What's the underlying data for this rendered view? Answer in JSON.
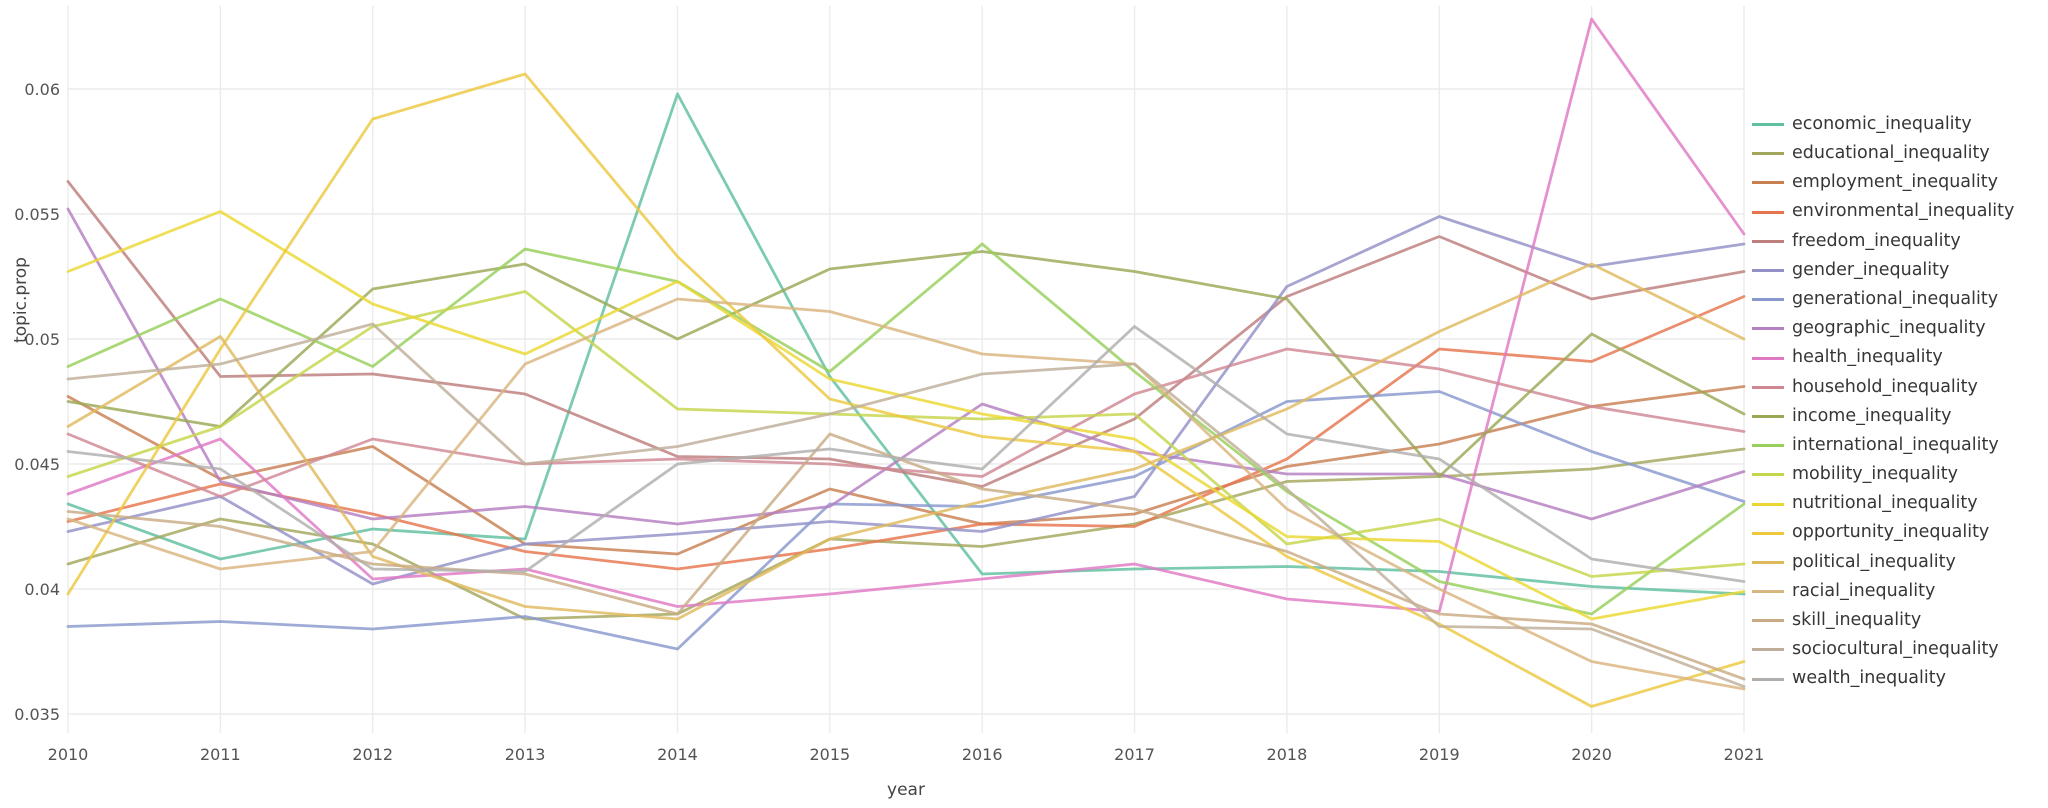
{
  "chart_data": {
    "type": "line",
    "title": "",
    "xlabel": "year",
    "ylabel": "topic.prop",
    "x": [
      2010,
      2011,
      2012,
      2013,
      2014,
      2015,
      2016,
      2017,
      2018,
      2019,
      2020,
      2021
    ],
    "x_tick_labels": [
      "2010",
      "2011",
      "2012",
      "2013",
      "2014",
      "2015",
      "2016",
      "2017",
      "2018",
      "2019",
      "2020",
      "2021"
    ],
    "yticks": [
      0.035,
      0.04,
      0.045,
      0.05,
      0.055,
      0.06
    ],
    "ytick_labels": [
      "0.035",
      "0.04",
      "0.045",
      "0.05",
      "0.055",
      "0.06"
    ],
    "ylim": [
      0.0335,
      0.0645
    ],
    "grid": true,
    "legend_position": "right",
    "series": [
      {
        "name": "economic_inequality",
        "color": "#5fbf9f",
        "values": [
          0.0434,
          0.0412,
          0.0424,
          0.042,
          0.0598,
          0.0485,
          0.0406,
          0.0408,
          0.0409,
          0.0407,
          0.0401,
          0.0398
        ]
      },
      {
        "name": "educational_inequality",
        "color": "#a3a75c",
        "values": [
          0.041,
          0.0428,
          0.0418,
          0.0388,
          0.039,
          0.042,
          0.0417,
          0.0426,
          0.0443,
          0.0445,
          0.0448,
          0.0456
        ]
      },
      {
        "name": "employment_inequality",
        "color": "#c87f51",
        "values": [
          0.0477,
          0.0444,
          0.0457,
          0.0418,
          0.0414,
          0.044,
          0.0426,
          0.043,
          0.0449,
          0.0458,
          0.0473,
          0.0481
        ]
      },
      {
        "name": "environmental_inequality",
        "color": "#e5754d",
        "values": [
          0.0427,
          0.0442,
          0.043,
          0.0415,
          0.0408,
          0.0416,
          0.0426,
          0.0425,
          0.0452,
          0.0496,
          0.0491,
          0.0517
        ]
      },
      {
        "name": "freedom_inequality",
        "color": "#bd7e7d",
        "values": [
          0.0563,
          0.0485,
          0.0486,
          0.0478,
          0.0453,
          0.0452,
          0.0441,
          0.0468,
          0.0517,
          0.0541,
          0.0516,
          0.0527
        ]
      },
      {
        "name": "gender_inequality",
        "color": "#9290c7",
        "values": [
          0.0423,
          0.0437,
          0.0402,
          0.0418,
          0.0422,
          0.0427,
          0.0423,
          0.0437,
          0.0521,
          0.0549,
          0.0529,
          0.0538
        ]
      },
      {
        "name": "generational_inequality",
        "color": "#8798cd",
        "values": [
          0.0385,
          0.0387,
          0.0384,
          0.0389,
          0.0376,
          0.0434,
          0.0433,
          0.0445,
          0.0475,
          0.0479,
          0.0455,
          0.0435
        ]
      },
      {
        "name": "geographic_inequality",
        "color": "#b57fc1",
        "values": [
          0.0552,
          0.0443,
          0.0428,
          0.0433,
          0.0426,
          0.0433,
          0.0474,
          0.0455,
          0.0446,
          0.0446,
          0.0428,
          0.0447
        ]
      },
      {
        "name": "health_inequality",
        "color": "#e079c4",
        "values": [
          0.0438,
          0.046,
          0.0404,
          0.0408,
          0.0393,
          0.0398,
          0.0404,
          0.041,
          0.0396,
          0.0391,
          0.0628,
          0.0542
        ]
      },
      {
        "name": "household_inequality",
        "color": "#d08794",
        "values": [
          0.0462,
          0.0437,
          0.046,
          0.045,
          0.0452,
          0.045,
          0.0445,
          0.0478,
          0.0496,
          0.0488,
          0.0473,
          0.0463
        ]
      },
      {
        "name": "income_inequality",
        "color": "#9aa854",
        "values": [
          0.0475,
          0.0465,
          0.052,
          0.053,
          0.05,
          0.0528,
          0.0535,
          0.0527,
          0.0516,
          0.0445,
          0.0502,
          0.047
        ]
      },
      {
        "name": "international_inequality",
        "color": "#97cf5a",
        "values": [
          0.0489,
          0.0516,
          0.0489,
          0.0536,
          0.0523,
          0.0487,
          0.0538,
          0.0487,
          0.0439,
          0.0403,
          0.039,
          0.0434
        ]
      },
      {
        "name": "mobility_inequality",
        "color": "#c6d64b",
        "values": [
          0.0445,
          0.0465,
          0.0505,
          0.0519,
          0.0472,
          0.047,
          0.0468,
          0.047,
          0.0418,
          0.0428,
          0.0405,
          0.041
        ]
      },
      {
        "name": "nutritional_inequality",
        "color": "#ead831",
        "values": [
          0.0527,
          0.0551,
          0.0514,
          0.0494,
          0.0523,
          0.0484,
          0.047,
          0.046,
          0.0421,
          0.0419,
          0.0388,
          0.0399
        ]
      },
      {
        "name": "opportunity_inequality",
        "color": "#edc83f",
        "values": [
          0.0398,
          0.0496,
          0.0588,
          0.0606,
          0.0533,
          0.0476,
          0.0461,
          0.0455,
          0.0413,
          0.0386,
          0.0353,
          0.0371
        ]
      },
      {
        "name": "political_inequality",
        "color": "#dfba5d",
        "values": [
          0.0465,
          0.0501,
          0.0413,
          0.0393,
          0.0388,
          0.042,
          0.0435,
          0.0448,
          0.0472,
          0.0503,
          0.053,
          0.05
        ]
      },
      {
        "name": "racial_inequality",
        "color": "#d9b57f",
        "values": [
          0.0428,
          0.0408,
          0.0415,
          0.049,
          0.0516,
          0.0511,
          0.0494,
          0.049,
          0.0432,
          0.04,
          0.0371,
          0.036
        ]
      },
      {
        "name": "skill_inequality",
        "color": "#c8ab84",
        "values": [
          0.0431,
          0.0425,
          0.041,
          0.0406,
          0.039,
          0.0462,
          0.044,
          0.0432,
          0.0415,
          0.039,
          0.0386,
          0.0364
        ]
      },
      {
        "name": "sociocultural_inequality",
        "color": "#bfae99",
        "values": [
          0.0484,
          0.049,
          0.0506,
          0.045,
          0.0457,
          0.047,
          0.0486,
          0.049,
          0.044,
          0.0385,
          0.0384,
          0.0361
        ]
      },
      {
        "name": "wealth_inequality",
        "color": "#b0aeac",
        "values": [
          0.0455,
          0.0448,
          0.0408,
          0.0407,
          0.045,
          0.0456,
          0.0448,
          0.0505,
          0.0462,
          0.0452,
          0.0412,
          0.0403
        ]
      }
    ]
  },
  "colors": {
    "background": "#ffffff",
    "gridline": "#ebebeb",
    "tick_text": "#545454",
    "legend_text": "#363636"
  }
}
